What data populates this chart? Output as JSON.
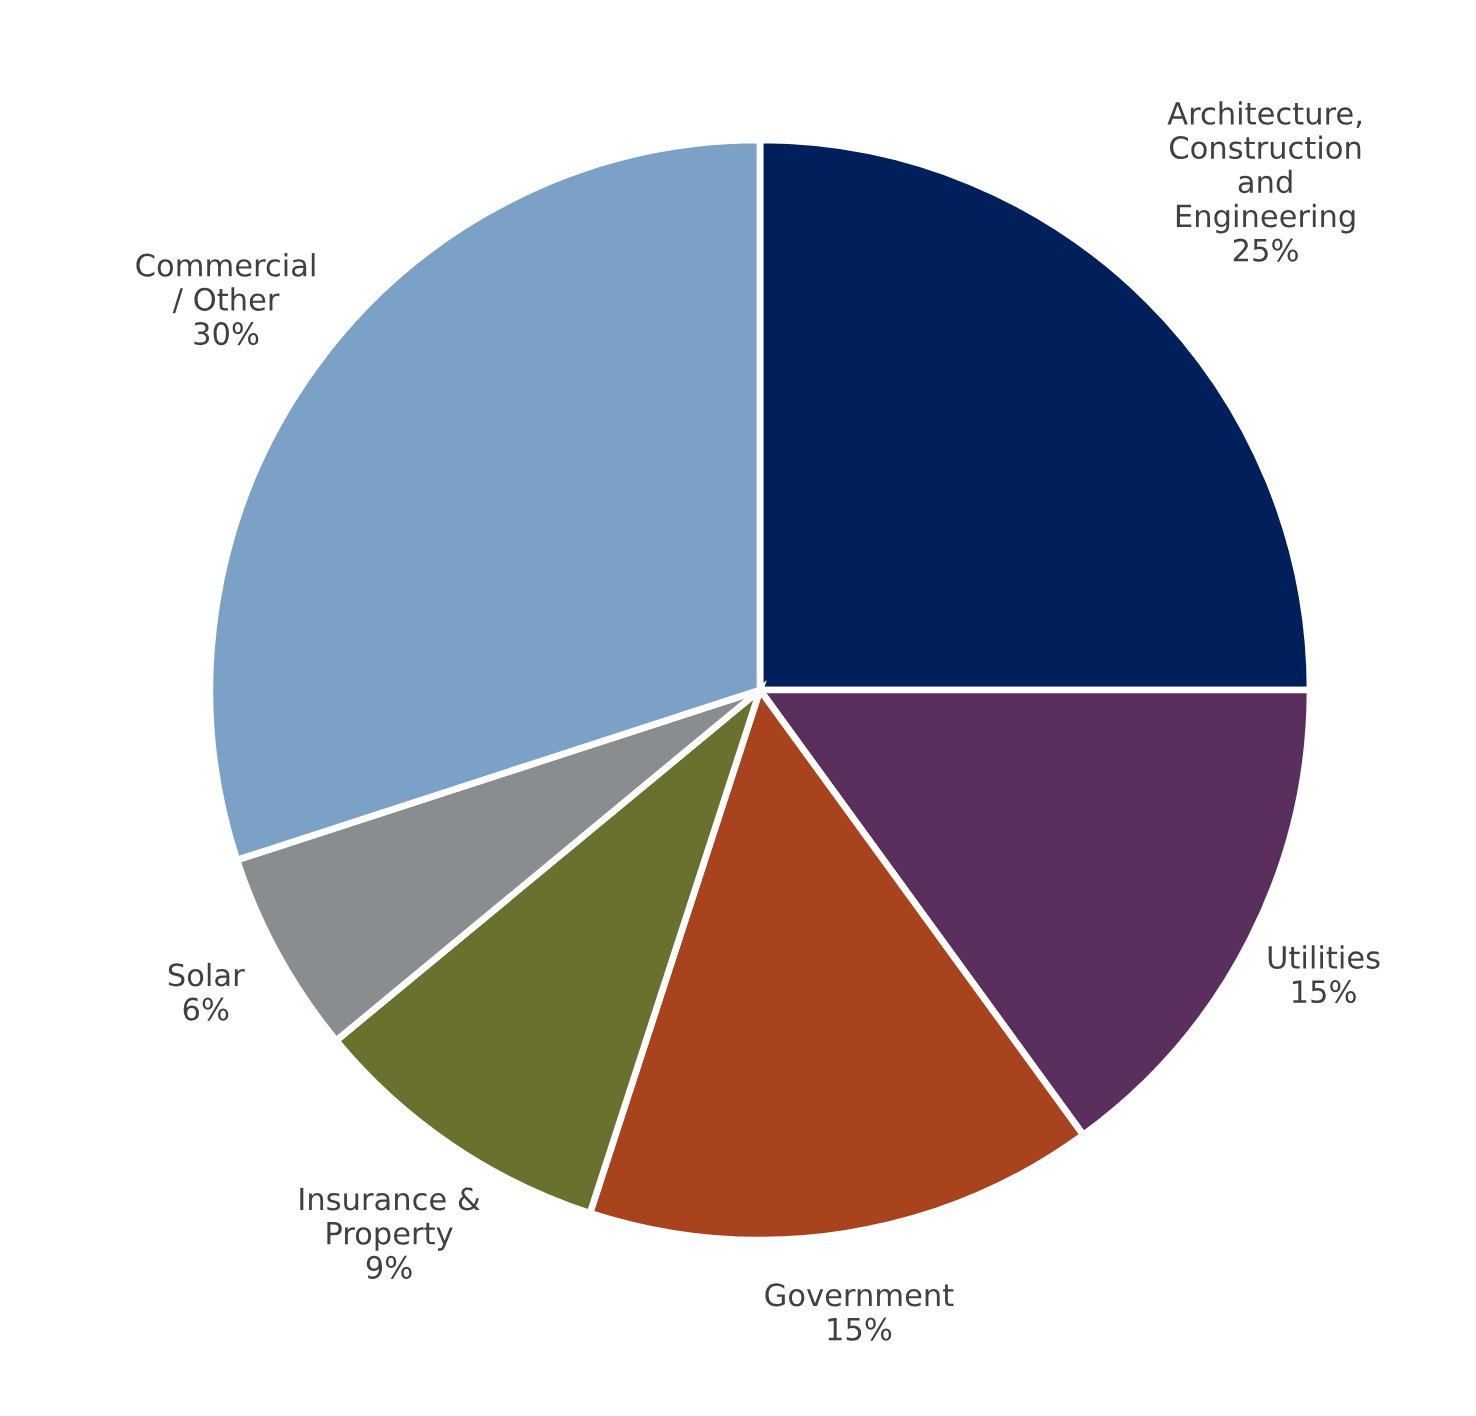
{
  "chart_data": {
    "type": "pie",
    "categories": [
      "Architecture,\nConstruction\nand\nEngineering",
      "Utilities",
      "Government",
      "Insurance &\nProperty",
      "Solar",
      "Commercial\n/ Other"
    ],
    "values": [
      25,
      15,
      15,
      9,
      6,
      30
    ],
    "value_labels": [
      "25%",
      "15%",
      "15%",
      "9%",
      "6%",
      "30%"
    ],
    "colors": [
      "#001f5b",
      "#5a2f5e",
      "#a9431e",
      "#6a712f",
      "#8a8d90",
      "#7ca1c6"
    ],
    "legend": false
  }
}
